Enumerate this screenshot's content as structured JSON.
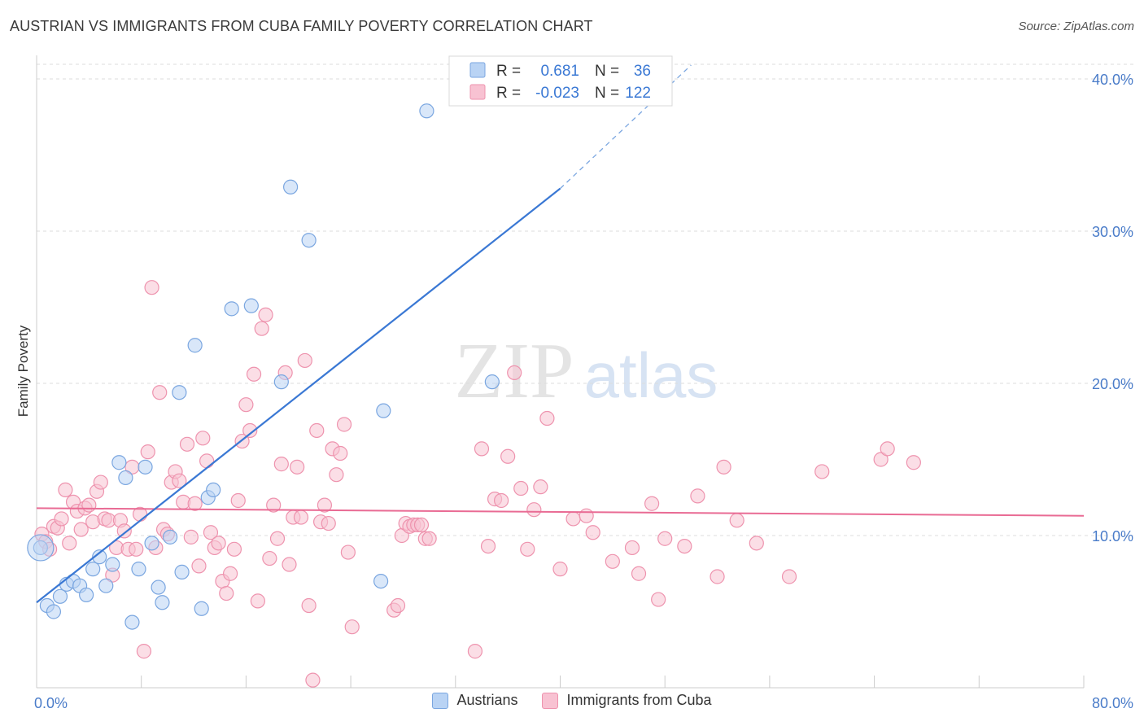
{
  "header": {
    "title": "AUSTRIAN VS IMMIGRANTS FROM CUBA FAMILY POVERTY CORRELATION CHART",
    "source": "Source: ZipAtlas.com"
  },
  "watermark": {
    "zip": "ZIP",
    "atlas": "atlas"
  },
  "colors": {
    "blue_fill": "#b9d3f4",
    "blue_stroke": "#7aa6e0",
    "blue_line": "#3a78d4",
    "pink_fill": "#f8c2d2",
    "pink_stroke": "#ee93ae",
    "pink_line": "#e96b94",
    "tick_text": "#4a7cc9",
    "grid": "#dddddd"
  },
  "legend": {
    "rows": [
      {
        "r_label": "R =",
        "r_value": "0.681",
        "n_label": "N =",
        "n_value": "36"
      },
      {
        "r_label": "R =",
        "r_value": "-0.023",
        "n_label": "N =",
        "n_value": "122"
      }
    ]
  },
  "chart_data": {
    "type": "scatter",
    "title": "AUSTRIAN VS IMMIGRANTS FROM CUBA FAMILY POVERTY CORRELATION CHART",
    "xlabel": "",
    "ylabel": "Family Poverty",
    "xlim": [
      0,
      80
    ],
    "ylim": [
      0,
      40
    ],
    "x_tick_labels": [
      "0.0%",
      "80.0%"
    ],
    "y_ticks": [
      10,
      20,
      30,
      40
    ],
    "y_tick_labels": [
      "10.0%",
      "20.0%",
      "30.0%",
      "40.0%"
    ],
    "grid": true,
    "legend_position": "top-center",
    "series": [
      {
        "name": "Austrians",
        "color": "#7aa6e0",
        "r": 0.681,
        "n": 36,
        "trend": {
          "x": [
            0,
            40
          ],
          "y": [
            5.6,
            32.8
          ],
          "dashed_to": [
            50,
            40
          ]
        },
        "points": [
          [
            0.3,
            9.2
          ],
          [
            0.8,
            5.4
          ],
          [
            1.3,
            5.0
          ],
          [
            1.8,
            6.0
          ],
          [
            2.3,
            6.8
          ],
          [
            2.8,
            7.0
          ],
          [
            3.3,
            6.7
          ],
          [
            3.8,
            6.1
          ],
          [
            4.3,
            7.8
          ],
          [
            4.8,
            8.6
          ],
          [
            5.3,
            6.7
          ],
          [
            5.8,
            8.1
          ],
          [
            6.3,
            14.8
          ],
          [
            6.8,
            13.8
          ],
          [
            7.3,
            4.3
          ],
          [
            7.8,
            7.8
          ],
          [
            8.3,
            14.5
          ],
          [
            8.8,
            9.5
          ],
          [
            9.3,
            6.6
          ],
          [
            9.6,
            5.6
          ],
          [
            10.2,
            9.9
          ],
          [
            10.9,
            19.4
          ],
          [
            11.1,
            7.6
          ],
          [
            12.1,
            22.5
          ],
          [
            12.6,
            5.2
          ],
          [
            13.1,
            12.5
          ],
          [
            13.5,
            13.0
          ],
          [
            14.9,
            24.9
          ],
          [
            16.4,
            25.1
          ],
          [
            18.7,
            20.1
          ],
          [
            19.4,
            32.9
          ],
          [
            20.8,
            29.4
          ],
          [
            26.5,
            18.2
          ],
          [
            26.3,
            7.0
          ],
          [
            29.8,
            37.9
          ],
          [
            34.8,
            20.1
          ]
        ]
      },
      {
        "name": "Immigrants from Cuba",
        "color": "#ee93ae",
        "r": -0.023,
        "n": 122,
        "trend": {
          "x": [
            0,
            80
          ],
          "y": [
            11.8,
            11.3
          ]
        },
        "points": [
          [
            0.4,
            10.1
          ],
          [
            0.7,
            9.6
          ],
          [
            1.0,
            9.1
          ],
          [
            1.3,
            10.6
          ],
          [
            1.6,
            10.5
          ],
          [
            1.9,
            11.1
          ],
          [
            2.2,
            13.0
          ],
          [
            2.5,
            9.5
          ],
          [
            2.8,
            12.2
          ],
          [
            3.1,
            11.6
          ],
          [
            3.4,
            10.4
          ],
          [
            3.7,
            11.8
          ],
          [
            4.0,
            12.0
          ],
          [
            4.3,
            10.9
          ],
          [
            4.6,
            12.9
          ],
          [
            4.9,
            13.5
          ],
          [
            5.2,
            11.1
          ],
          [
            5.5,
            11.0
          ],
          [
            5.8,
            7.4
          ],
          [
            6.1,
            9.2
          ],
          [
            6.4,
            11.0
          ],
          [
            6.7,
            10.3
          ],
          [
            7.0,
            9.1
          ],
          [
            7.3,
            14.5
          ],
          [
            7.6,
            9.1
          ],
          [
            7.9,
            11.4
          ],
          [
            8.2,
            2.4
          ],
          [
            8.5,
            15.5
          ],
          [
            8.8,
            26.3
          ],
          [
            9.1,
            9.2
          ],
          [
            9.4,
            19.4
          ],
          [
            9.7,
            10.4
          ],
          [
            10.0,
            10.1
          ],
          [
            10.3,
            13.5
          ],
          [
            10.6,
            14.2
          ],
          [
            10.9,
            13.6
          ],
          [
            11.2,
            12.2
          ],
          [
            11.5,
            16.0
          ],
          [
            11.8,
            9.9
          ],
          [
            12.1,
            12.1
          ],
          [
            12.4,
            8.0
          ],
          [
            12.7,
            16.4
          ],
          [
            13.0,
            14.9
          ],
          [
            13.3,
            10.2
          ],
          [
            13.6,
            9.2
          ],
          [
            13.9,
            9.5
          ],
          [
            14.2,
            7.0
          ],
          [
            14.5,
            6.2
          ],
          [
            14.8,
            7.5
          ],
          [
            15.1,
            9.1
          ],
          [
            15.4,
            12.3
          ],
          [
            15.7,
            16.2
          ],
          [
            16.0,
            18.6
          ],
          [
            16.3,
            16.9
          ],
          [
            16.6,
            20.6
          ],
          [
            16.9,
            5.7
          ],
          [
            17.2,
            23.6
          ],
          [
            17.5,
            24.5
          ],
          [
            17.8,
            8.5
          ],
          [
            18.1,
            12.0
          ],
          [
            18.4,
            9.8
          ],
          [
            18.7,
            14.7
          ],
          [
            19.0,
            20.7
          ],
          [
            19.3,
            8.1
          ],
          [
            19.6,
            11.2
          ],
          [
            19.9,
            14.5
          ],
          [
            20.2,
            11.2
          ],
          [
            20.5,
            21.5
          ],
          [
            20.8,
            5.4
          ],
          [
            21.1,
            0.5
          ],
          [
            21.4,
            16.9
          ],
          [
            21.7,
            10.9
          ],
          [
            22.0,
            12.0
          ],
          [
            22.3,
            10.8
          ],
          [
            22.6,
            15.7
          ],
          [
            22.9,
            14.0
          ],
          [
            23.2,
            15.4
          ],
          [
            23.5,
            17.3
          ],
          [
            23.8,
            8.9
          ],
          [
            24.1,
            4.0
          ],
          [
            27.3,
            5.1
          ],
          [
            27.6,
            5.4
          ],
          [
            27.9,
            10.0
          ],
          [
            28.2,
            10.8
          ],
          [
            28.5,
            10.6
          ],
          [
            28.8,
            10.7
          ],
          [
            29.1,
            10.7
          ],
          [
            29.4,
            10.7
          ],
          [
            29.7,
            9.8
          ],
          [
            30.0,
            9.8
          ],
          [
            33.5,
            2.4
          ],
          [
            34.0,
            15.7
          ],
          [
            34.5,
            9.3
          ],
          [
            35.0,
            12.4
          ],
          [
            35.5,
            12.3
          ],
          [
            36.0,
            15.2
          ],
          [
            36.5,
            20.7
          ],
          [
            37.0,
            13.1
          ],
          [
            37.5,
            9.1
          ],
          [
            38.0,
            11.7
          ],
          [
            38.5,
            13.2
          ],
          [
            39.0,
            17.7
          ],
          [
            40.0,
            7.8
          ],
          [
            41.0,
            11.1
          ],
          [
            42.0,
            11.3
          ],
          [
            42.5,
            10.2
          ],
          [
            44.0,
            8.3
          ],
          [
            45.5,
            9.2
          ],
          [
            46.0,
            7.5
          ],
          [
            47.0,
            12.1
          ],
          [
            47.5,
            5.8
          ],
          [
            48.0,
            9.8
          ],
          [
            49.5,
            9.3
          ],
          [
            50.5,
            12.6
          ],
          [
            52.0,
            7.3
          ],
          [
            52.5,
            14.5
          ],
          [
            53.5,
            11.0
          ],
          [
            55.0,
            9.5
          ],
          [
            57.5,
            7.3
          ],
          [
            60.0,
            14.2
          ],
          [
            64.5,
            15.0
          ],
          [
            65.0,
            15.7
          ],
          [
            67.0,
            14.8
          ]
        ]
      }
    ]
  }
}
